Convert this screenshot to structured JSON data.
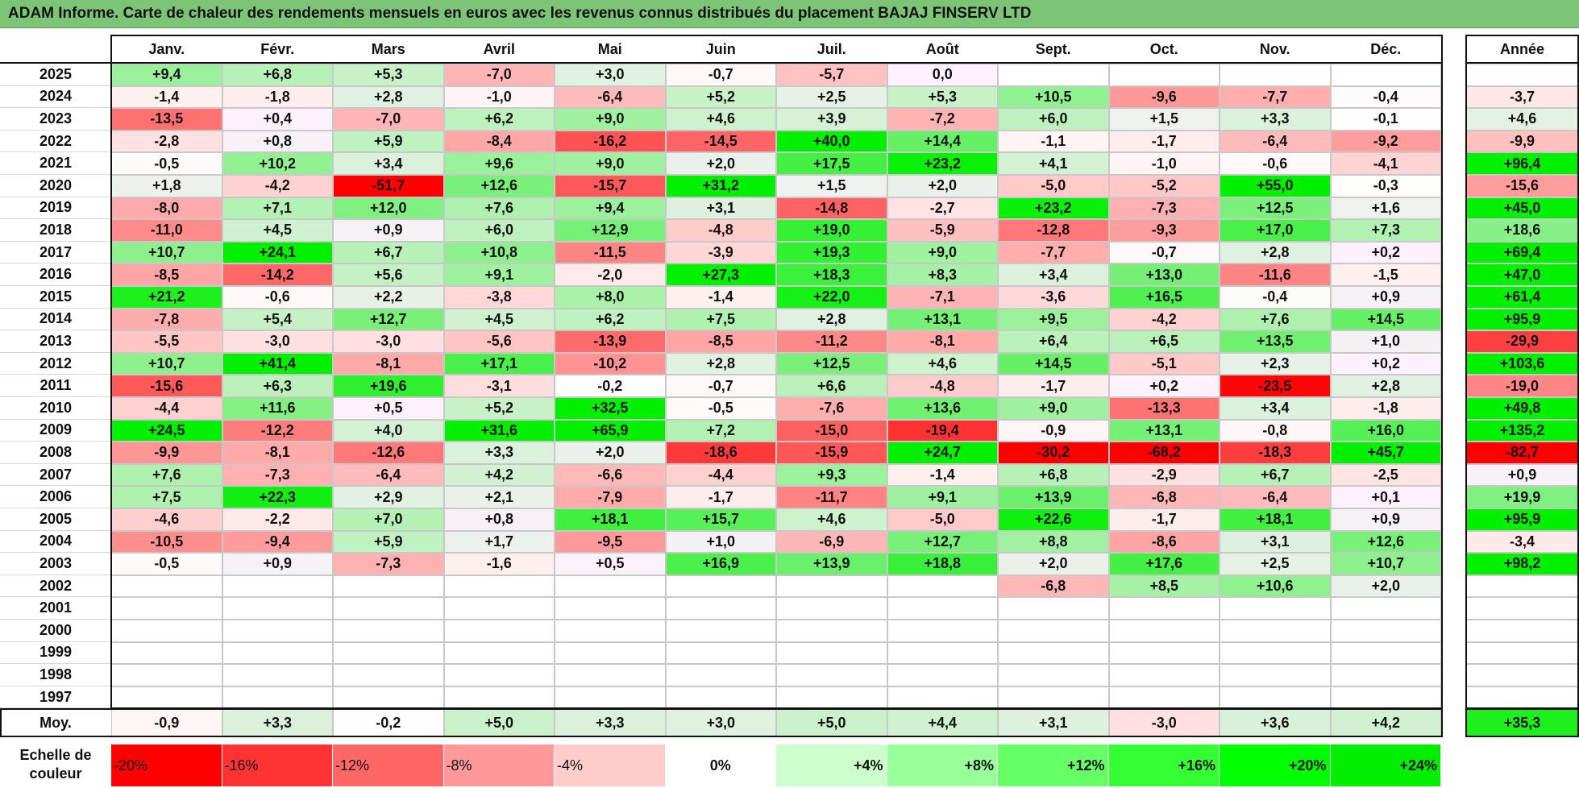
{
  "title": "ADAM Informe. Carte de chaleur des rendements mensuels en euros avec les revenus connus distribués du placement BAJAJ FINSERV LTD",
  "months": [
    "Janv.",
    "Févr.",
    "Mars",
    "Avril",
    "Mai",
    "Juin",
    "Juil.",
    "Août",
    "Sept.",
    "Oct.",
    "Nov.",
    "Déc."
  ],
  "year_header": "Année",
  "avg_label": "Moy.",
  "scale_label": "Echelle de couleur",
  "chart_data": {
    "type": "heatmap",
    "years": [
      "2025",
      "2024",
      "2023",
      "2022",
      "2021",
      "2020",
      "2019",
      "2018",
      "2017",
      "2016",
      "2015",
      "2014",
      "2013",
      "2012",
      "2011",
      "2010",
      "2009",
      "2008",
      "2007",
      "2006",
      "2005",
      "2004",
      "2003",
      "2002",
      "2001",
      "2000",
      "1999",
      "1998",
      "1997"
    ],
    "values": [
      [
        "+9,4",
        "+6,8",
        "+5,3",
        "-7,0",
        "+3,0",
        "-0,7",
        "-5,7",
        "0,0",
        "",
        "",
        "",
        ""
      ],
      [
        "-1,4",
        "-1,8",
        "+2,8",
        "-1,0",
        "-6,4",
        "+5,2",
        "+2,5",
        "+5,3",
        "+10,5",
        "-9,6",
        "-7,7",
        "-0,4"
      ],
      [
        "-13,5",
        "+0,4",
        "-7,0",
        "+6,2",
        "+9,0",
        "+4,6",
        "+3,9",
        "-7,2",
        "+6,0",
        "+1,5",
        "+3,3",
        "-0,1"
      ],
      [
        "-2,8",
        "+0,8",
        "+5,9",
        "-8,4",
        "-16,2",
        "-14,5",
        "+40,0",
        "+14,4",
        "-1,1",
        "-1,7",
        "-6,4",
        "-9,2"
      ],
      [
        "-0,5",
        "+10,2",
        "+3,4",
        "+9,6",
        "+9,0",
        "+2,0",
        "+17,5",
        "+23,2",
        "+4,1",
        "-1,0",
        "-0,6",
        "-4,1"
      ],
      [
        "+1,8",
        "-4,2",
        "-51,7",
        "+12,6",
        "-15,7",
        "+31,2",
        "+1,5",
        "+2,0",
        "-5,0",
        "-5,2",
        "+55,0",
        "-0,3"
      ],
      [
        "-8,0",
        "+7,1",
        "+12,0",
        "+7,6",
        "+9,4",
        "+3,1",
        "-14,8",
        "-2,7",
        "+23,2",
        "-7,3",
        "+12,5",
        "+1,6"
      ],
      [
        "-11,0",
        "+4,5",
        "+0,9",
        "+6,0",
        "+12,9",
        "-4,8",
        "+19,0",
        "-5,9",
        "-12,8",
        "-9,3",
        "+17,0",
        "+7,3"
      ],
      [
        "+10,7",
        "+24,1",
        "+6,7",
        "+10,8",
        "-11,5",
        "-3,9",
        "+19,3",
        "+9,0",
        "-7,7",
        "-0,7",
        "+2,8",
        "+0,2"
      ],
      [
        "-8,5",
        "-14,2",
        "+5,6",
        "+9,1",
        "-2,0",
        "+27,3",
        "+18,3",
        "+8,3",
        "+3,4",
        "+13,0",
        "-11,6",
        "-1,5"
      ],
      [
        "+21,2",
        "-0,6",
        "+2,2",
        "-3,8",
        "+8,0",
        "-1,4",
        "+22,0",
        "-7,1",
        "-3,6",
        "+16,5",
        "-0,4",
        "+0,9"
      ],
      [
        "-7,8",
        "+5,4",
        "+12,7",
        "+4,5",
        "+6,2",
        "+7,5",
        "+2,8",
        "+13,1",
        "+9,5",
        "-4,2",
        "+7,6",
        "+14,5"
      ],
      [
        "-5,5",
        "-3,0",
        "-3,0",
        "-5,6",
        "-13,9",
        "-8,5",
        "-11,2",
        "-8,1",
        "+6,4",
        "+6,5",
        "+13,5",
        "+1,0"
      ],
      [
        "+10,7",
        "+41,4",
        "-8,1",
        "+17,1",
        "-10,2",
        "+2,8",
        "+12,5",
        "+4,6",
        "+14,5",
        "-5,1",
        "+2,3",
        "+0,2"
      ],
      [
        "-15,6",
        "+6,3",
        "+19,6",
        "-3,1",
        "-0,2",
        "-0,7",
        "+6,6",
        "-4,8",
        "-1,7",
        "+0,2",
        "-23,5",
        "+2,8"
      ],
      [
        "-4,4",
        "+11,6",
        "+0,5",
        "+5,2",
        "+32,5",
        "-0,5",
        "-7,6",
        "+13,6",
        "+9,0",
        "-13,3",
        "+3,4",
        "-1,8"
      ],
      [
        "+24,5",
        "-12,2",
        "+4,0",
        "+31,6",
        "+65,9",
        "+7,2",
        "-15,0",
        "-19,4",
        "-0,9",
        "+13,1",
        "-0,8",
        "+16,0"
      ],
      [
        "-9,9",
        "-8,1",
        "-12,6",
        "+3,3",
        "+2,0",
        "-18,6",
        "-15,9",
        "+24,7",
        "-30,2",
        "-68,2",
        "-18,3",
        "+45,7"
      ],
      [
        "+7,6",
        "-7,3",
        "-6,4",
        "+4,2",
        "-6,6",
        "-4,4",
        "+9,3",
        "-1,4",
        "+6,8",
        "-2,9",
        "+6,7",
        "-2,5"
      ],
      [
        "+7,5",
        "+22,3",
        "+2,9",
        "+2,1",
        "-7,9",
        "-1,7",
        "-11,7",
        "+9,1",
        "+13,9",
        "-6,8",
        "-6,4",
        "+0,1"
      ],
      [
        "-4,6",
        "-2,2",
        "+7,0",
        "+0,8",
        "+18,1",
        "+15,7",
        "+4,6",
        "-5,0",
        "+22,6",
        "-1,7",
        "+18,1",
        "+0,9"
      ],
      [
        "-10,5",
        "-9,4",
        "+5,9",
        "+1,7",
        "-9,5",
        "+1,0",
        "-6,9",
        "+12,7",
        "+8,8",
        "-8,6",
        "+3,1",
        "+12,6"
      ],
      [
        "-0,5",
        "+0,9",
        "-7,3",
        "-1,6",
        "+0,5",
        "+16,9",
        "+13,9",
        "+18,8",
        "+2,0",
        "+17,6",
        "+2,5",
        "+10,7"
      ],
      [
        "",
        "",
        "",
        "",
        "",
        "",
        "",
        "",
        "-6,8",
        "+8,5",
        "+10,6",
        "+2,0"
      ],
      [
        "",
        "",
        "",
        "",
        "",
        "",
        "",
        "",
        "",
        "",
        "",
        ""
      ],
      [
        "",
        "",
        "",
        "",
        "",
        "",
        "",
        "",
        "",
        "",
        "",
        ""
      ],
      [
        "",
        "",
        "",
        "",
        "",
        "",
        "",
        "",
        "",
        "",
        "",
        ""
      ],
      [
        "",
        "",
        "",
        "",
        "",
        "",
        "",
        "",
        "",
        "",
        "",
        ""
      ],
      [
        "",
        "",
        "",
        "",
        "",
        "",
        "",
        "",
        "",
        "",
        "",
        ""
      ]
    ],
    "annual": [
      "",
      "-3,7",
      "+4,6",
      "-9,9",
      "+96,4",
      "-15,6",
      "+45,0",
      "+18,6",
      "+69,4",
      "+47,0",
      "+61,4",
      "+95,9",
      "-29,9",
      "+103,6",
      "-19,0",
      "+49,8",
      "+135,2",
      "-82,7",
      "+0,9",
      "+19,9",
      "+95,9",
      "-3,4",
      "+98,2",
      "",
      "",
      "",
      "",
      "",
      ""
    ],
    "monthly_avg": [
      "-0,9",
      "+3,3",
      "-0,2",
      "+5,0",
      "+3,3",
      "+3,0",
      "+5,0",
      "+4,4",
      "+3,1",
      "-3,0",
      "+3,6",
      "+4,2"
    ],
    "annual_avg": "+35,3",
    "color_scale": [
      {
        "label": "-20%",
        "value": -20,
        "color": "#ff0000"
      },
      {
        "label": "-16%",
        "value": -16,
        "color": "#ff3333"
      },
      {
        "label": "-12%",
        "value": -12,
        "color": "#ff6666"
      },
      {
        "label": "-8%",
        "value": -8,
        "color": "#ff9999"
      },
      {
        "label": "-4%",
        "value": -4,
        "color": "#ffcccc"
      },
      {
        "label": "0%",
        "value": 0,
        "color": "#ffffff"
      },
      {
        "label": "+4%",
        "value": 4,
        "color": "#ccffcc"
      },
      {
        "label": "+8%",
        "value": 8,
        "color": "#99ff99"
      },
      {
        "label": "+12%",
        "value": 12,
        "color": "#66ff66"
      },
      {
        "label": "+16%",
        "value": 16,
        "color": "#33ff33"
      },
      {
        "label": "+20%",
        "value": 20,
        "color": "#00ff00"
      },
      {
        "label": "+24%",
        "value": 24,
        "color": "#00ee00"
      }
    ],
    "colors": {
      "title_bg": "#7cc576"
    }
  }
}
